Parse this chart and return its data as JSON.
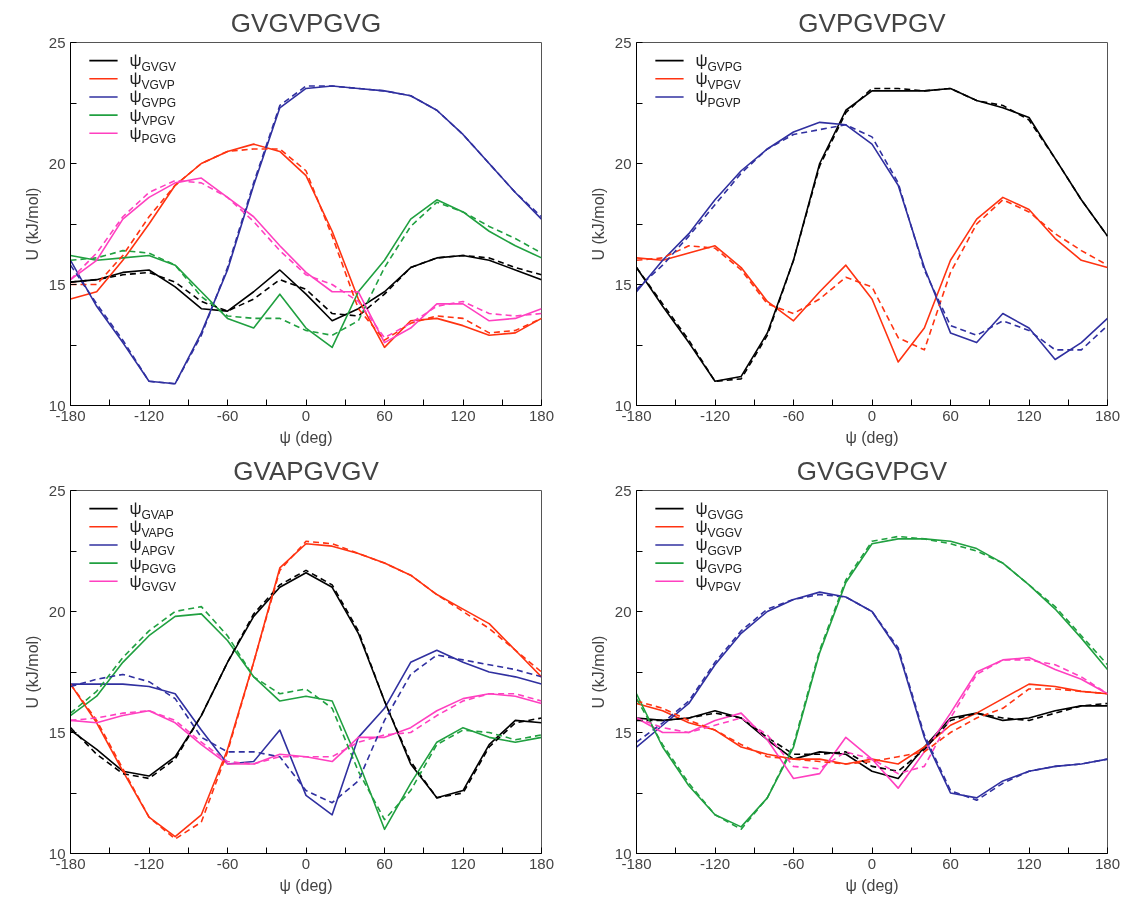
{
  "chart_data": [
    {
      "type": "line",
      "title": "GVGVPGVG",
      "xlabel": "ψ (deg)",
      "ylabel": "U (kJ/mol)",
      "legend": "top left",
      "grid": false,
      "x": [
        -180,
        -160,
        -140,
        -120,
        -100,
        -80,
        -60,
        -40,
        -20,
        0,
        20,
        40,
        60,
        80,
        100,
        120,
        140,
        160,
        180
      ],
      "xlim": [
        -180,
        180
      ],
      "xticks": [
        -180,
        {
          "value": -150,
          "label": null
        },
        -120,
        {
          "value": -90,
          "label": null
        },
        -60,
        {
          "value": -30,
          "label": null
        },
        0,
        {
          "value": 30,
          "label": null
        },
        60,
        {
          "value": 90,
          "label": null
        },
        120,
        {
          "value": 150,
          "label": null
        },
        180
      ],
      "ylim": [
        10,
        25
      ],
      "yticks": [
        10,
        {
          "value": 12.5,
          "label": null
        },
        15,
        {
          "value": 17.5,
          "label": null
        },
        20,
        {
          "value": 22.5,
          "label": null
        },
        25
      ],
      "series": [
        {
          "name": "ψ$_{GVGV}$",
          "color": "#000000",
          "line_style": "solid",
          "values": [
            15.1,
            15.2,
            15.5,
            15.6,
            14.9,
            14.0,
            13.9,
            14.7,
            15.6,
            14.6,
            13.5,
            14.0,
            14.7,
            15.7,
            16.1,
            16.2,
            16.0,
            15.6,
            15.2
          ]
        },
        {
          "name": "ψ$_{VGVP}$",
          "color": "#ff3311",
          "line_style": "solid",
          "values": [
            14.4,
            14.7,
            16.0,
            17.5,
            19.1,
            20.0,
            20.5,
            20.8,
            20.5,
            19.5,
            17.2,
            14.4,
            12.4,
            13.5,
            13.6,
            13.3,
            12.9,
            13.0,
            13.6
          ]
        },
        {
          "name": "ψ$_{GVPG}$",
          "color": "#3030a0",
          "line_style": "solid",
          "values": [
            16.0,
            14.1,
            12.6,
            11.0,
            10.9,
            13.0,
            15.6,
            19.1,
            22.3,
            23.1,
            23.2,
            23.1,
            23.0,
            22.8,
            22.2,
            21.2,
            20.0,
            18.8,
            17.7
          ]
        },
        {
          "name": "ψ$_{VPGV}$",
          "color": "#20a040",
          "line_style": "solid",
          "values": [
            16.2,
            16.0,
            16.1,
            16.2,
            15.8,
            14.7,
            13.6,
            13.2,
            14.6,
            13.2,
            12.4,
            14.7,
            16.0,
            17.7,
            18.5,
            18.0,
            17.2,
            16.6,
            16.1
          ]
        },
        {
          "name": "ψ$_{PGVG}$",
          "color": "#ff40c0",
          "line_style": "solid",
          "values": [
            15.2,
            16.0,
            17.7,
            18.6,
            19.2,
            19.4,
            18.6,
            17.8,
            16.6,
            15.5,
            14.7,
            14.7,
            12.6,
            13.2,
            14.2,
            14.2,
            13.5,
            13.6,
            14.0
          ]
        },
        {
          "color": "#000000",
          "line_style": "dashed",
          "values": [
            15.1,
            15.2,
            15.4,
            15.5,
            15.1,
            14.3,
            13.9,
            14.4,
            15.2,
            14.8,
            13.8,
            13.7,
            14.6,
            15.7,
            16.1,
            16.2,
            16.1,
            15.7,
            15.4
          ]
        },
        {
          "color": "#ff3311",
          "line_style": "dashed",
          "values": [
            15.0,
            15.0,
            16.2,
            17.8,
            19.1,
            20.0,
            20.5,
            20.6,
            20.6,
            19.7,
            17.0,
            14.0,
            12.7,
            13.4,
            13.7,
            13.6,
            13.0,
            13.1,
            13.6
          ]
        },
        {
          "color": "#3030a0",
          "line_style": "dashed",
          "values": [
            15.8,
            14.2,
            12.7,
            11.0,
            10.9,
            12.9,
            15.7,
            19.2,
            22.4,
            23.2,
            23.2,
            23.1,
            23.0,
            22.8,
            22.2,
            21.2,
            20.0,
            18.8,
            17.8
          ]
        },
        {
          "color": "#20a040",
          "line_style": "dashed",
          "values": [
            16.0,
            16.1,
            16.4,
            16.3,
            15.8,
            14.5,
            13.7,
            13.6,
            13.6,
            13.1,
            12.9,
            13.5,
            15.7,
            17.4,
            18.4,
            18.0,
            17.4,
            16.9,
            16.3
          ]
        },
        {
          "color": "#ff40c0",
          "line_style": "dashed",
          "values": [
            15.2,
            16.3,
            17.8,
            18.8,
            19.3,
            19.2,
            18.6,
            17.6,
            16.4,
            15.4,
            15.0,
            14.3,
            12.8,
            13.4,
            14.1,
            14.3,
            13.8,
            13.7,
            13.8
          ]
        }
      ]
    },
    {
      "type": "line",
      "title": "GVPGVPGV",
      "xlabel": "ψ (deg)",
      "ylabel": "U (kJ/mol)",
      "legend": "top left",
      "grid": false,
      "x": [
        -180,
        -160,
        -140,
        -120,
        -100,
        -80,
        -60,
        -40,
        -20,
        0,
        20,
        40,
        60,
        80,
        100,
        120,
        140,
        160,
        180
      ],
      "xlim": [
        -180,
        180
      ],
      "xticks": [
        -180,
        {
          "value": -150,
          "label": null
        },
        -120,
        {
          "value": -90,
          "label": null
        },
        -60,
        {
          "value": -30,
          "label": null
        },
        0,
        {
          "value": 30,
          "label": null
        },
        60,
        {
          "value": 90,
          "label": null
        },
        120,
        {
          "value": 150,
          "label": null
        },
        180
      ],
      "ylim": [
        10,
        25
      ],
      "yticks": [
        10,
        {
          "value": 12.5,
          "label": null
        },
        15,
        {
          "value": 17.5,
          "label": null
        },
        20,
        {
          "value": 22.5,
          "label": null
        },
        25
      ],
      "series": [
        {
          "name": "ψ$_{GVPG}$",
          "color": "#000000",
          "line_style": "solid",
          "values": [
            15.7,
            14.1,
            12.6,
            11.0,
            11.2,
            13.0,
            16.0,
            20.0,
            22.2,
            23.0,
            23.0,
            23.0,
            23.1,
            22.6,
            22.3,
            21.9,
            20.2,
            18.5,
            17.0
          ]
        },
        {
          "name": "ψ$_{VPGV}$",
          "color": "#ff3311",
          "line_style": "solid",
          "values": [
            16.1,
            16.0,
            16.3,
            16.6,
            15.7,
            14.3,
            13.5,
            14.7,
            15.8,
            14.4,
            11.8,
            13.2,
            16.0,
            17.7,
            18.6,
            18.1,
            16.9,
            16.0,
            15.7
          ]
        },
        {
          "name": "ψ$_{PGVP}$",
          "color": "#3030a0",
          "line_style": "solid",
          "values": [
            14.7,
            16.0,
            17.1,
            18.5,
            19.7,
            20.6,
            21.3,
            21.7,
            21.6,
            20.8,
            19.1,
            15.7,
            13.0,
            12.6,
            13.8,
            13.2,
            11.9,
            12.6,
            13.6
          ]
        },
        {
          "color": "#000000",
          "line_style": "dashed",
          "values": [
            15.7,
            14.2,
            12.7,
            11.0,
            11.1,
            12.9,
            16.0,
            19.9,
            22.1,
            23.1,
            23.1,
            23.0,
            23.1,
            22.6,
            22.4,
            21.8,
            20.2,
            18.5,
            17.0
          ]
        },
        {
          "color": "#ff3311",
          "line_style": "dashed",
          "values": [
            16.0,
            16.1,
            16.6,
            16.5,
            15.6,
            14.2,
            13.8,
            14.4,
            15.3,
            14.9,
            12.8,
            12.3,
            15.5,
            17.5,
            18.5,
            18.0,
            17.1,
            16.4,
            15.8
          ]
        },
        {
          "color": "#3030a0",
          "line_style": "dashed",
          "values": [
            14.8,
            15.8,
            17.0,
            18.3,
            19.6,
            20.6,
            21.2,
            21.4,
            21.6,
            21.1,
            19.2,
            15.6,
            13.3,
            12.9,
            13.5,
            13.1,
            12.3,
            12.3,
            13.3
          ]
        }
      ]
    },
    {
      "type": "line",
      "title": "GVAPGVGV",
      "xlabel": "ψ (deg)",
      "ylabel": "U (kJ/mol)",
      "legend": "top left",
      "grid": false,
      "x": [
        -180,
        -160,
        -140,
        -120,
        -100,
        -80,
        -60,
        -40,
        -20,
        0,
        20,
        40,
        60,
        80,
        100,
        120,
        140,
        160,
        180
      ],
      "xlim": [
        -180,
        180
      ],
      "xticks": [
        -180,
        {
          "value": -150,
          "label": null
        },
        -120,
        {
          "value": -90,
          "label": null
        },
        -60,
        {
          "value": -30,
          "label": null
        },
        0,
        {
          "value": 30,
          "label": null
        },
        60,
        {
          "value": 90,
          "label": null
        },
        120,
        {
          "value": 150,
          "label": null
        },
        180
      ],
      "ylim": [
        10,
        25
      ],
      "yticks": [
        10,
        {
          "value": 12.5,
          "label": null
        },
        15,
        {
          "value": 17.5,
          "label": null
        },
        20,
        {
          "value": 22.5,
          "label": null
        },
        25
      ],
      "series": [
        {
          "name": "ψ$_{GVAP}$",
          "color": "#000000",
          "line_style": "solid",
          "values": [
            15.1,
            14.3,
            13.4,
            13.2,
            14.0,
            15.7,
            17.9,
            19.8,
            21.0,
            21.6,
            21.0,
            19.1,
            16.3,
            13.7,
            12.3,
            12.6,
            14.5,
            15.5,
            15.4
          ]
        },
        {
          "name": "ψ$_{VAPG}$",
          "color": "#ff3311",
          "line_style": "solid",
          "values": [
            17.0,
            15.4,
            13.4,
            11.5,
            10.7,
            11.6,
            14.3,
            17.9,
            21.8,
            22.8,
            22.7,
            22.4,
            22.0,
            21.5,
            20.7,
            20.1,
            19.5,
            18.4,
            17.3
          ]
        },
        {
          "name": "ψ$_{APGV}$",
          "color": "#3030a0",
          "line_style": "solid",
          "values": [
            17.0,
            17.0,
            17.0,
            16.9,
            16.6,
            15.1,
            13.7,
            13.8,
            15.1,
            12.4,
            11.6,
            14.8,
            16.0,
            17.9,
            18.4,
            17.9,
            17.5,
            17.3,
            17.0
          ]
        },
        {
          "name": "ψ$_{PGVG}$",
          "color": "#20a040",
          "line_style": "solid",
          "values": [
            15.7,
            16.5,
            17.9,
            19.0,
            19.8,
            19.9,
            18.8,
            17.3,
            16.3,
            16.5,
            16.3,
            13.8,
            11.0,
            12.9,
            14.6,
            15.2,
            14.8,
            14.6,
            14.8
          ]
        },
        {
          "name": "ψ$_{GVGV}$",
          "color": "#ff40c0",
          "line_style": "solid",
          "values": [
            15.5,
            15.4,
            15.7,
            15.9,
            15.4,
            14.5,
            13.7,
            13.7,
            14.1,
            14.0,
            13.8,
            14.8,
            14.8,
            15.2,
            15.9,
            16.4,
            16.6,
            16.5,
            16.2
          ]
        },
        {
          "color": "#000000",
          "line_style": "dashed",
          "values": [
            15.2,
            14.1,
            13.3,
            13.1,
            13.9,
            15.7,
            17.9,
            19.9,
            21.1,
            21.7,
            21.1,
            19.2,
            16.3,
            13.8,
            12.3,
            12.5,
            14.4,
            15.4,
            15.6
          ]
        },
        {
          "color": "#ff3311",
          "line_style": "dashed",
          "values": [
            17.0,
            15.5,
            13.5,
            11.5,
            10.6,
            11.3,
            14.2,
            17.9,
            21.7,
            22.9,
            22.8,
            22.4,
            22.0,
            21.5,
            20.7,
            20.0,
            19.3,
            18.4,
            17.5
          ]
        },
        {
          "color": "#3030a0",
          "line_style": "dashed",
          "values": [
            16.9,
            17.2,
            17.4,
            17.1,
            16.4,
            14.8,
            14.2,
            14.2,
            14.0,
            12.6,
            12.1,
            13.0,
            15.5,
            17.4,
            18.2,
            18.0,
            17.8,
            17.6,
            17.3
          ]
        },
        {
          "color": "#20a040",
          "line_style": "dashed",
          "values": [
            15.8,
            16.7,
            18.1,
            19.2,
            20.0,
            20.2,
            19.0,
            17.3,
            16.6,
            16.8,
            16.0,
            13.4,
            11.4,
            12.6,
            14.5,
            15.1,
            15.0,
            14.7,
            14.9
          ]
        },
        {
          "color": "#ff40c0",
          "line_style": "dashed",
          "values": [
            15.5,
            15.6,
            15.8,
            15.9,
            15.5,
            14.6,
            13.8,
            13.7,
            14.0,
            14.0,
            14.0,
            14.6,
            14.9,
            15.0,
            15.7,
            16.3,
            16.6,
            16.6,
            16.3
          ]
        }
      ]
    },
    {
      "type": "line",
      "title": "GVGGVPGV",
      "xlabel": "ψ (deg)",
      "ylabel": "U (kJ/mol)",
      "legend": "top left",
      "grid": false,
      "x": [
        -180,
        -160,
        -140,
        -120,
        -100,
        -80,
        -60,
        -40,
        -20,
        0,
        20,
        40,
        60,
        80,
        100,
        120,
        140,
        160,
        180
      ],
      "xlim": [
        -180,
        180
      ],
      "xticks": [
        -180,
        {
          "value": -150,
          "label": null
        },
        -120,
        {
          "value": -90,
          "label": null
        },
        -60,
        {
          "value": -30,
          "label": null
        },
        0,
        {
          "value": 30,
          "label": null
        },
        60,
        {
          "value": 90,
          "label": null
        },
        120,
        {
          "value": 150,
          "label": null
        },
        180
      ],
      "ylim": [
        10,
        25
      ],
      "yticks": [
        10,
        {
          "value": 12.5,
          "label": null
        },
        15,
        {
          "value": 17.5,
          "label": null
        },
        20,
        {
          "value": 22.5,
          "label": null
        },
        25
      ],
      "series": [
        {
          "name": "ψ$_{GVGG}$",
          "color": "#000000",
          "line_style": "solid",
          "values": [
            15.6,
            15.5,
            15.6,
            15.9,
            15.6,
            14.7,
            13.9,
            14.2,
            14.1,
            13.4,
            13.1,
            14.4,
            15.6,
            15.8,
            15.5,
            15.6,
            15.9,
            16.1,
            16.1
          ]
        },
        {
          "name": "ψ$_{VGGV}$",
          "color": "#ff3311",
          "line_style": "solid",
          "values": [
            16.2,
            15.9,
            15.4,
            15.1,
            14.4,
            14.1,
            13.9,
            13.9,
            13.7,
            13.9,
            13.7,
            14.4,
            15.3,
            15.8,
            16.4,
            17.0,
            16.9,
            16.7,
            16.6
          ]
        },
        {
          "name": "ψ$_{GGVP}$",
          "color": "#3030a0",
          "line_style": "solid",
          "values": [
            14.4,
            15.3,
            16.2,
            17.8,
            19.1,
            20.0,
            20.5,
            20.8,
            20.6,
            20.0,
            18.4,
            14.8,
            12.5,
            12.3,
            13.0,
            13.4,
            13.6,
            13.7,
            13.9
          ]
        },
        {
          "name": "ψ$_{GVPG}$",
          "color": "#20a040",
          "line_style": "solid",
          "values": [
            16.6,
            14.4,
            12.8,
            11.6,
            11.1,
            12.3,
            14.4,
            18.3,
            21.2,
            22.8,
            23.0,
            23.0,
            22.9,
            22.6,
            22.0,
            21.1,
            20.1,
            18.9,
            17.6
          ]
        },
        {
          "name": "ψ$_{VPGV}$",
          "color": "#ff40c0",
          "line_style": "solid",
          "values": [
            15.6,
            15.0,
            15.0,
            15.5,
            15.8,
            14.7,
            13.1,
            13.3,
            14.8,
            13.9,
            12.7,
            14.2,
            15.8,
            17.5,
            18.0,
            18.1,
            17.6,
            17.2,
            16.6
          ]
        },
        {
          "color": "#000000",
          "line_style": "dashed",
          "values": [
            15.5,
            15.5,
            15.6,
            15.8,
            15.6,
            14.8,
            14.1,
            14.1,
            14.2,
            13.6,
            13.4,
            14.3,
            15.5,
            15.8,
            15.6,
            15.5,
            15.8,
            16.1,
            16.2
          ]
        },
        {
          "color": "#ff3311",
          "line_style": "dashed",
          "values": [
            16.3,
            16.0,
            15.5,
            15.1,
            14.5,
            14.0,
            13.9,
            13.8,
            13.7,
            13.8,
            14.0,
            14.2,
            15.0,
            15.6,
            16.0,
            16.8,
            16.8,
            16.7,
            16.6
          ]
        },
        {
          "color": "#3030a0",
          "line_style": "dashed",
          "values": [
            14.6,
            15.4,
            16.3,
            17.9,
            19.2,
            20.1,
            20.5,
            20.7,
            20.6,
            20.0,
            18.5,
            14.9,
            12.6,
            12.2,
            12.9,
            13.4,
            13.6,
            13.7,
            13.9
          ]
        },
        {
          "color": "#20a040",
          "line_style": "dashed",
          "values": [
            16.4,
            14.5,
            12.9,
            11.6,
            11.0,
            12.3,
            14.5,
            18.4,
            21.3,
            22.9,
            23.1,
            23.0,
            22.8,
            22.5,
            22.0,
            21.1,
            20.2,
            19.0,
            17.8
          ]
        },
        {
          "color": "#ff40c0",
          "line_style": "dashed",
          "values": [
            15.6,
            15.2,
            15.0,
            15.3,
            15.6,
            14.9,
            13.6,
            13.5,
            14.2,
            13.9,
            13.3,
            13.6,
            15.6,
            17.4,
            18.0,
            18.0,
            17.8,
            17.3,
            16.6
          ]
        }
      ]
    }
  ]
}
